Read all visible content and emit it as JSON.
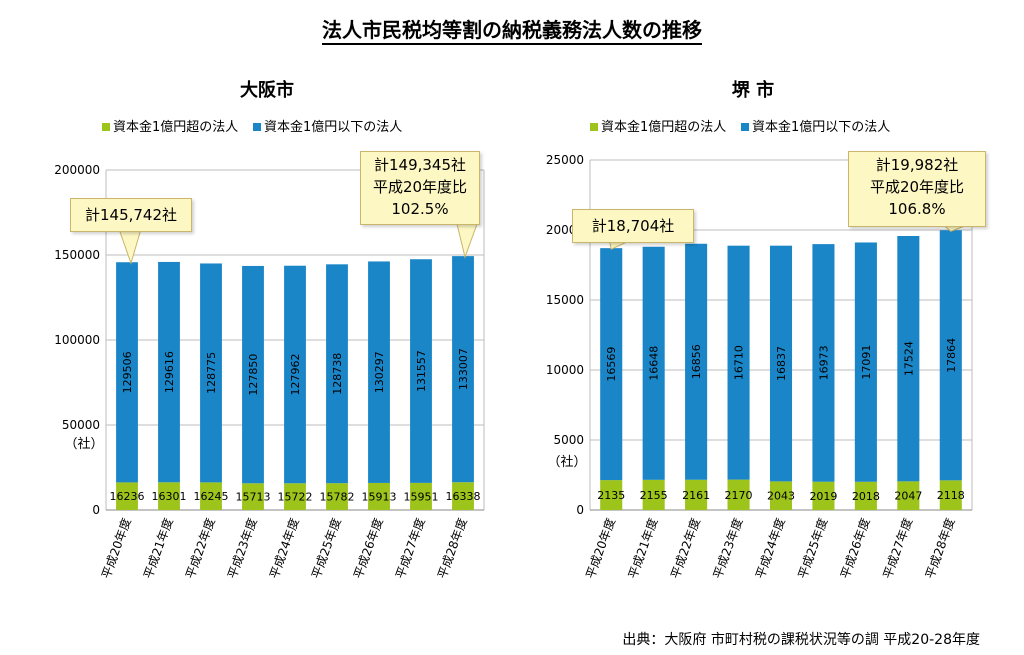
{
  "title": "法人市民税均等割の納税義務法人数の推移",
  "source": "出典：大阪府 市町村税の課税状況等の調 平成20-28年度",
  "colors": {
    "large": "#9dc41a",
    "small": "#1a86c8",
    "grid": "#bdbdbd"
  },
  "chart_data": [
    {
      "type": "bar",
      "stacked": true,
      "title": "大阪市",
      "ylabel": "（社）",
      "ylim": [
        0,
        200000
      ],
      "yticks": [
        0,
        50000,
        100000,
        150000,
        200000
      ],
      "categories": [
        "平成20年度",
        "平成21年度",
        "平成22年度",
        "平成23年度",
        "平成24年度",
        "平成25年度",
        "平成26年度",
        "平成27年度",
        "平成28年度"
      ],
      "series": [
        {
          "name": "資本金1億円超の法人",
          "values": [
            16236,
            16301,
            16245,
            15713,
            15722,
            15782,
            15913,
            15951,
            16338
          ]
        },
        {
          "name": "資本金1億円以下の法人",
          "values": [
            129506,
            129616,
            128775,
            127850,
            127962,
            128738,
            130297,
            131557,
            133007
          ]
        }
      ],
      "legend": [
        "資本金1億円超の法人",
        "資本金1億円以下の法人"
      ],
      "callout_first": {
        "lines": [
          "計145,742社"
        ]
      },
      "callout_last": {
        "lines": [
          "計149,345社",
          "平成20年度比",
          "102.5%"
        ]
      }
    },
    {
      "type": "bar",
      "stacked": true,
      "title": "堺 市",
      "ylabel": "（社）",
      "ylim": [
        0,
        25000
      ],
      "yticks": [
        0,
        5000,
        10000,
        15000,
        20000,
        25000
      ],
      "categories": [
        "平成20年度",
        "平成21年度",
        "平成22年度",
        "平成23年度",
        "平成24年度",
        "平成25年度",
        "平成26年度",
        "平成27年度",
        "平成28年度"
      ],
      "series": [
        {
          "name": "資本金1億円超の法人",
          "values": [
            2135,
            2155,
            2161,
            2170,
            2043,
            2019,
            2018,
            2047,
            2118
          ]
        },
        {
          "name": "資本金1億円以下の法人",
          "values": [
            16569,
            16648,
            16856,
            16710,
            16837,
            16973,
            17091,
            17524,
            17864
          ]
        }
      ],
      "legend": [
        "資本金1億円超の法人",
        "資本金1億円以下の法人"
      ],
      "callout_first": {
        "lines": [
          "計18,704社"
        ]
      },
      "callout_last": {
        "lines": [
          "計19,982社",
          "平成20年度比",
          "106.8%"
        ]
      }
    }
  ]
}
